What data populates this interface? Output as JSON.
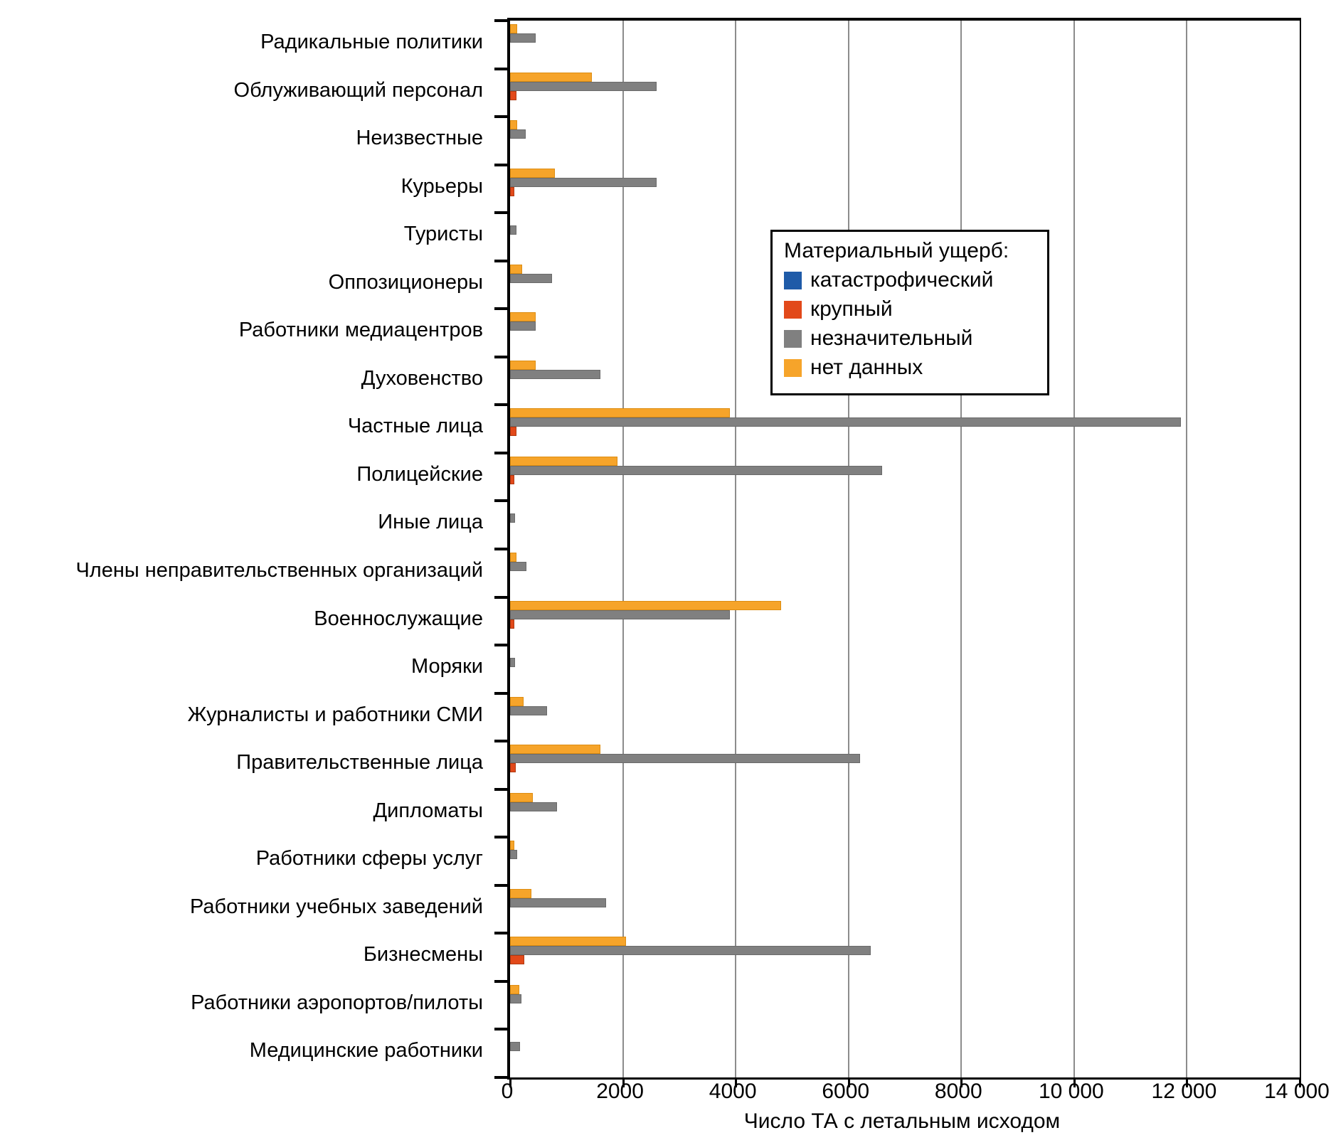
{
  "chart_data": {
    "type": "bar",
    "orientation": "horizontal-grouped",
    "xlabel": "Число ТА с летальным исходом",
    "xlim": [
      0,
      14000
    ],
    "x_ticks": [
      "0",
      "2000",
      "4000",
      "6000",
      "8000",
      "10 000",
      "12 000",
      "14 000"
    ],
    "x_tick_values": [
      0,
      2000,
      4000,
      6000,
      8000,
      10000,
      12000,
      14000
    ],
    "grid": "vertical-on",
    "categories": [
      "Радикальные политики",
      "Облуживающий персонал",
      "Неизвестные",
      "Курьеры",
      "Туристы",
      "Оппозиционеры",
      "Работники медиацентров",
      "Духовенство",
      "Частные лица",
      "Полицейские",
      "Иные лица",
      "Члены неправительственных организаций",
      "Военнослужащие",
      "Моряки",
      "Журналисты и работники СМИ",
      "Правительственные лица",
      "Дипломаты",
      "Работники сферы услуг",
      "Работники учебных заведений",
      "Бизнесмены",
      "Работники аэропортов/пилоты",
      "Медицинские работники"
    ],
    "legend": {
      "title": "Материальный ущерб:",
      "position": "upper-middle-inside"
    },
    "series": [
      {
        "name": "катастрофический",
        "color": "#1f5ba8",
        "edge": "#16477f",
        "values": [
          0,
          0,
          0,
          0,
          0,
          0,
          0,
          0,
          0,
          0,
          0,
          0,
          0,
          0,
          0,
          0,
          0,
          0,
          0,
          0,
          0,
          0
        ]
      },
      {
        "name": "крупный",
        "color": "#e2491a",
        "edge": "#b03a12",
        "values": [
          0,
          110,
          0,
          80,
          0,
          0,
          0,
          0,
          110,
          70,
          0,
          0,
          80,
          0,
          0,
          100,
          0,
          0,
          0,
          250,
          0,
          0
        ]
      },
      {
        "name": "незначительный",
        "color": "#808080",
        "edge": "#6a6a6a",
        "values": [
          450,
          2600,
          280,
          2600,
          110,
          750,
          450,
          1600,
          11900,
          6600,
          90,
          290,
          3900,
          90,
          650,
          6200,
          830,
          120,
          1700,
          6400,
          200,
          180
        ]
      },
      {
        "name": "нет данных",
        "color": "#f6a42a",
        "edge": "#dd8d12",
        "values": [
          120,
          1450,
          130,
          800,
          0,
          220,
          450,
          450,
          3900,
          1900,
          0,
          110,
          4800,
          0,
          240,
          1600,
          400,
          80,
          375,
          2050,
          160,
          0
        ]
      }
    ]
  }
}
